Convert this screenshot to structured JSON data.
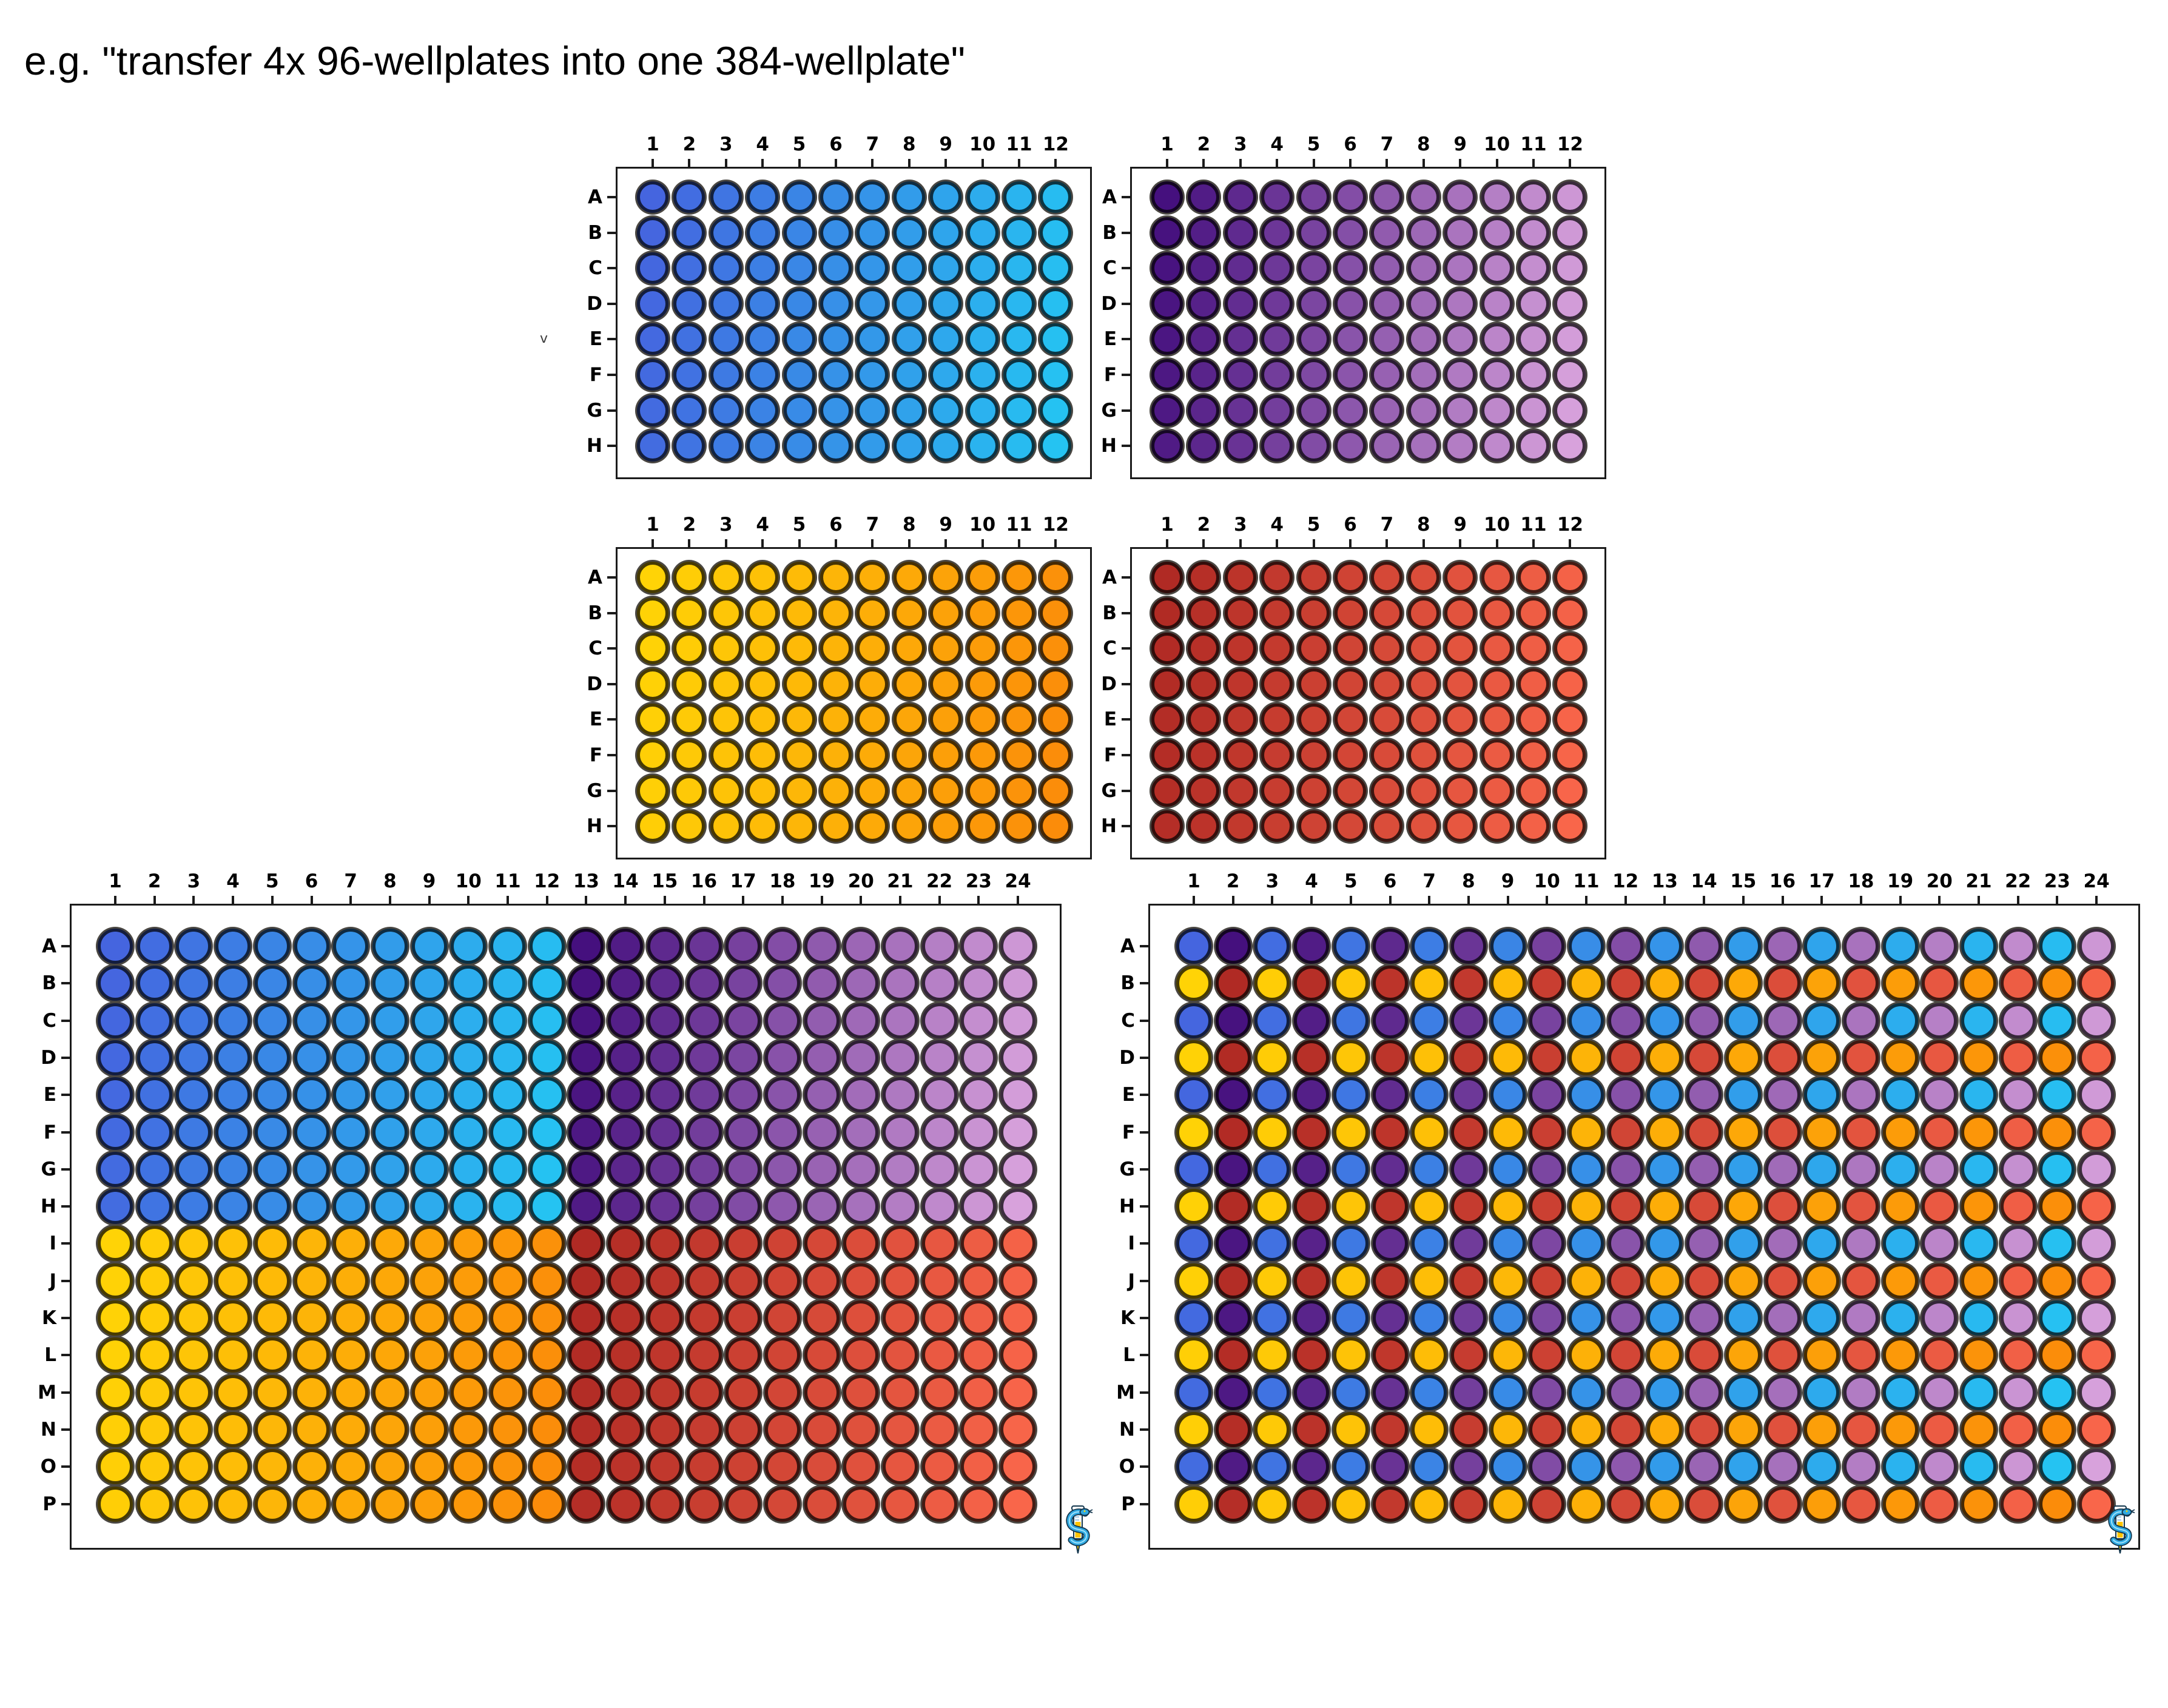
{
  "title": "e.g. \"transfer 4x 96-wellplates into one 384-wellplate\"",
  "stray_mark": "v",
  "style": {
    "plate_border_color": "#1b1b1b",
    "well_outer_ring_color": "#4A4742",
    "label_color": "#000000",
    "background": "#ffffff"
  },
  "palette": {
    "blue": {
      "label": "blue gradient",
      "start": "#4565DF",
      "end": "#25C3F2"
    },
    "purple": {
      "label": "purple gradient",
      "start": "#45107E",
      "end": "#D8A2DC"
    },
    "yellow": {
      "label": "yellow-orange gradient",
      "start": "#FFD306",
      "end": "#FB8C0A"
    },
    "red": {
      "label": "red gradient",
      "start": "#B02A24",
      "end": "#F9664A"
    }
  },
  "plates": [
    {
      "id": "96-plate-blue",
      "kind": "96-wellplate",
      "fill": "gradient",
      "ramp": "blue",
      "row_labels": [
        "A",
        "B",
        "C",
        "D",
        "E",
        "F",
        "G",
        "H"
      ],
      "col_labels": [
        "1",
        "2",
        "3",
        "4",
        "5",
        "6",
        "7",
        "8",
        "9",
        "10",
        "11",
        "12"
      ]
    },
    {
      "id": "96-plate-purple",
      "kind": "96-wellplate",
      "fill": "gradient",
      "ramp": "purple",
      "row_labels": [
        "A",
        "B",
        "C",
        "D",
        "E",
        "F",
        "G",
        "H"
      ],
      "col_labels": [
        "1",
        "2",
        "3",
        "4",
        "5",
        "6",
        "7",
        "8",
        "9",
        "10",
        "11",
        "12"
      ]
    },
    {
      "id": "96-plate-yellow",
      "kind": "96-wellplate",
      "fill": "gradient",
      "ramp": "yellow",
      "row_labels": [
        "A",
        "B",
        "C",
        "D",
        "E",
        "F",
        "G",
        "H"
      ],
      "col_labels": [
        "1",
        "2",
        "3",
        "4",
        "5",
        "6",
        "7",
        "8",
        "9",
        "10",
        "11",
        "12"
      ]
    },
    {
      "id": "96-plate-red",
      "kind": "96-wellplate",
      "fill": "gradient",
      "ramp": "red",
      "row_labels": [
        "A",
        "B",
        "C",
        "D",
        "E",
        "F",
        "G",
        "H"
      ],
      "col_labels": [
        "1",
        "2",
        "3",
        "4",
        "5",
        "6",
        "7",
        "8",
        "9",
        "10",
        "11",
        "12"
      ]
    },
    {
      "id": "384-plate-quadrants",
      "kind": "384-wellplate",
      "fill": "quadrant",
      "logo": "outside-right",
      "quadrants": {
        "top_left": "blue",
        "top_right": "purple",
        "bottom_left": "yellow",
        "bottom_right": "red"
      },
      "row_labels": [
        "A",
        "B",
        "C",
        "D",
        "E",
        "F",
        "G",
        "H",
        "I",
        "J",
        "K",
        "L",
        "M",
        "N",
        "O",
        "P"
      ],
      "col_labels": [
        "1",
        "2",
        "3",
        "4",
        "5",
        "6",
        "7",
        "8",
        "9",
        "10",
        "11",
        "12",
        "13",
        "14",
        "15",
        "16",
        "17",
        "18",
        "19",
        "20",
        "21",
        "22",
        "23",
        "24"
      ]
    },
    {
      "id": "384-plate-interleaved",
      "kind": "384-wellplate",
      "fill": "interleaved",
      "logo": "inside",
      "interleave": {
        "odd_row_odd_col": "blue",
        "odd_row_even_col": "purple",
        "even_row_odd_col": "yellow",
        "even_row_even_col": "red"
      },
      "row_labels": [
        "A",
        "B",
        "C",
        "D",
        "E",
        "F",
        "G",
        "H",
        "I",
        "J",
        "K",
        "L",
        "M",
        "N",
        "O",
        "P"
      ],
      "col_labels": [
        "1",
        "2",
        "3",
        "4",
        "5",
        "6",
        "7",
        "8",
        "9",
        "10",
        "11",
        "12",
        "13",
        "14",
        "15",
        "16",
        "17",
        "18",
        "19",
        "20",
        "21",
        "22",
        "23",
        "24"
      ]
    }
  ]
}
